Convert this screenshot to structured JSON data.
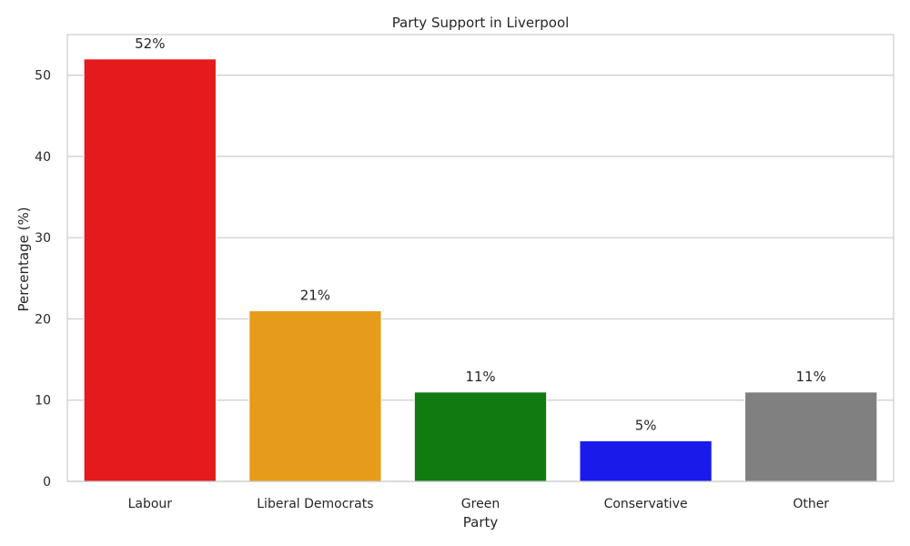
{
  "chart_data": {
    "type": "bar",
    "title": "Party Support in Liverpool",
    "xlabel": "Party",
    "ylabel": "Percentage (%)",
    "categories": [
      "Labour",
      "Liberal Democrats",
      "Green",
      "Conservative",
      "Other"
    ],
    "values": [
      52,
      21,
      11,
      5,
      11
    ],
    "data_labels": [
      "52%",
      "21%",
      "11%",
      "5%",
      "11%"
    ],
    "colors": [
      "#e41a1c",
      "#e69b1a",
      "#117a11",
      "#1a1aeb",
      "#808080"
    ],
    "ylim": [
      0,
      55
    ],
    "yticks": [
      0,
      10,
      20,
      30,
      40,
      50
    ],
    "grid": "horizontal",
    "grid_color": "#cccccc",
    "frame_color": "#cccccc",
    "legend": "none"
  }
}
